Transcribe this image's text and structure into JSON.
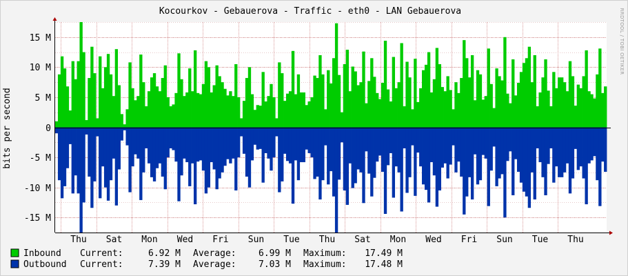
{
  "chart_data": {
    "type": "area",
    "title": "Kocourkov - Gebauerova - Traffic - eth0 - LAN Gebauerova",
    "ylabel": "bits per second",
    "watermark": "RRDTOOL / TOBI OETIKER",
    "ylim": [
      -17.5,
      17.5
    ],
    "y_ticks": [
      {
        "v": 15,
        "label": "15 M"
      },
      {
        "v": 10,
        "label": "10 M"
      },
      {
        "v": 5,
        "label": "5 M"
      },
      {
        "v": 0,
        "label": "0"
      },
      {
        "v": -5,
        "label": "-5 M"
      },
      {
        "v": -10,
        "label": "-10 M"
      },
      {
        "v": -15,
        "label": "-15 M"
      }
    ],
    "x_ticks": [
      "Thu",
      "Sat",
      "Mon",
      "Wed",
      "Fri",
      "Sun",
      "Tue",
      "Thu",
      "Sat",
      "Mon",
      "Wed",
      "Fri",
      "Sun",
      "Tue",
      "Thu"
    ],
    "grid": true,
    "series": [
      {
        "name": "Inbound",
        "color": "#00cc00",
        "values": [
          1,
          8.8,
          11.8,
          9.8,
          6.8,
          2.8,
          11,
          8,
          11,
          17.5,
          12.5,
          1.2,
          8.2,
          13.4,
          9,
          1.5,
          11.8,
          6.5,
          10,
          12.2,
          8.8,
          5.2,
          13,
          7,
          2.2,
          0.5,
          3,
          10.8,
          6.5,
          4.5,
          5.2,
          12.1,
          7.5,
          3.5,
          6,
          8.3,
          9,
          6.8,
          6,
          8.2,
          10.3,
          5,
          3.5,
          3.8,
          5.7,
          12.3,
          8,
          5.2,
          5.8,
          9.8,
          6,
          12.8,
          5.7,
          5.5,
          7.2,
          11,
          10,
          5.8,
          7,
          10.3,
          8.5,
          7.5,
          6.4,
          5.3,
          6,
          5.2,
          10.5,
          5,
          1.5,
          4.4,
          8.2,
          10,
          5.5,
          2.9,
          3.7,
          3.6,
          9.2,
          4.3,
          5.2,
          7.2,
          5,
          1.5,
          10.8,
          9,
          4.4,
          5.6,
          6,
          12.7,
          5.5,
          8.8,
          5.8,
          5.8,
          3.7,
          4.3,
          5,
          8.6,
          8.2,
          12,
          8.8,
          3,
          9.5,
          7.3,
          11.5,
          17.3,
          8.7,
          2.5,
          10.5,
          12.9,
          6,
          10.1,
          9.3,
          7,
          7.5,
          12.6,
          4,
          7.7,
          11.5,
          8.4,
          5.7,
          4.7,
          7.4,
          14.4,
          6.3,
          4.3,
          11.7,
          6.5,
          7.5,
          14,
          3.5,
          10.9,
          8.3,
          3,
          11.4,
          4.2,
          6.5,
          9.5,
          10.4,
          12.5,
          5.8,
          8,
          13.2,
          10.5,
          6.7,
          6,
          8.5,
          6.2,
          3,
          7.5,
          5.7,
          8.2,
          14.5,
          11.5,
          8.3,
          12,
          4.5,
          9.5,
          8.8,
          4.6,
          5.2,
          13.1,
          7.2,
          3.2,
          9.8,
          8.5,
          7.8,
          15,
          5.6,
          4,
          11.3,
          5.3,
          7.4,
          9.2,
          10.7,
          11.5,
          13.4,
          7.5,
          12,
          3.5,
          5.8,
          8.3,
          11.3,
          6.1,
          3.5,
          9.2,
          6.5,
          8.3,
          8.3,
          7.5,
          6,
          11,
          8.5,
          3.6,
          7.1,
          6.5,
          8.5,
          12.8,
          6,
          5.5,
          4.8,
          8.8,
          13.1,
          5.7,
          6.8
        ],
        "legend": {
          "label": "Inbound",
          "current": "6.92 M",
          "average": "6.99 M",
          "maximum": "17.49 M"
        }
      },
      {
        "name": "Outbound",
        "color": "#0033aa",
        "values": [
          -1,
          -8.8,
          -11.8,
          -9.8,
          -6.8,
          -2.8,
          -11,
          -8,
          -11,
          -17.5,
          -12.5,
          -1.2,
          -8.2,
          -13.4,
          -9,
          -1.5,
          -11.8,
          -6.5,
          -10,
          -12.2,
          -8.8,
          -5.2,
          -13,
          -7,
          -2.2,
          -0.5,
          -3,
          -10.8,
          -6.5,
          -4.5,
          -5.2,
          -12.1,
          -7.5,
          -3.5,
          -6,
          -8.3,
          -9,
          -6.8,
          -6,
          -8.2,
          -10.3,
          -5,
          -3.5,
          -3.8,
          -5.7,
          -12.3,
          -8,
          -5.2,
          -5.8,
          -9.8,
          -6,
          -12.8,
          -5.7,
          -5.5,
          -7.2,
          -11,
          -10,
          -5.8,
          -7,
          -10.3,
          -8.5,
          -7.5,
          -6.4,
          -5.3,
          -6,
          -5.2,
          -10.5,
          -5,
          -1.5,
          -4.4,
          -8.2,
          -10,
          -5.5,
          -2.9,
          -3.7,
          -3.6,
          -9.2,
          -4.3,
          -5.2,
          -7.2,
          -5,
          -1.5,
          -10.8,
          -9,
          -4.4,
          -5.6,
          -6,
          -12.7,
          -5.5,
          -8.8,
          -5.8,
          -5.8,
          -3.7,
          -4.3,
          -5,
          -8.6,
          -8.2,
          -12,
          -8.8,
          -3,
          -9.5,
          -7.3,
          -11.5,
          -17.5,
          -8.7,
          -2.5,
          -10.5,
          -12.9,
          -6,
          -10.1,
          -9.3,
          -7,
          -7.5,
          -12.6,
          -4,
          -7.7,
          -11.5,
          -8.4,
          -5.7,
          -4.7,
          -7.4,
          -14.4,
          -6.3,
          -4.3,
          -11.7,
          -6.5,
          -7.5,
          -14,
          -3.5,
          -10.9,
          -8.3,
          -3,
          -11.4,
          -4.2,
          -6.5,
          -9.5,
          -10.4,
          -12.5,
          -5.8,
          -8,
          -13.2,
          -10.5,
          -6.7,
          -6,
          -8.5,
          -6.2,
          -3,
          -7.5,
          -5.7,
          -8.2,
          -14.5,
          -11.5,
          -8.3,
          -12,
          -4.5,
          -9.5,
          -8.8,
          -4.6,
          -5.2,
          -13.1,
          -7.2,
          -3.2,
          -9.8,
          -8.5,
          -7.8,
          -15,
          -5.6,
          -4,
          -11.3,
          -5.3,
          -7.4,
          -9.2,
          -10.7,
          -11.5,
          -13.4,
          -7.5,
          -12,
          -3.5,
          -5.8,
          -8.3,
          -11.3,
          -6.1,
          -3.5,
          -9.2,
          -6.5,
          -8.3,
          -8.3,
          -7.5,
          -6,
          -11,
          -8.5,
          -3.6,
          -7.1,
          -6.5,
          -8.5,
          -12.8,
          -6,
          -5.5,
          -4.8,
          -8.8,
          -13.1,
          -5.7,
          -7.4
        ],
        "legend": {
          "label": "Outbound",
          "current": "7.39 M",
          "average": "7.03 M",
          "maximum": "17.48 M"
        }
      }
    ],
    "legend_labels": {
      "current": "Current:",
      "average": "Average:",
      "maximum": "Maximum:"
    }
  }
}
